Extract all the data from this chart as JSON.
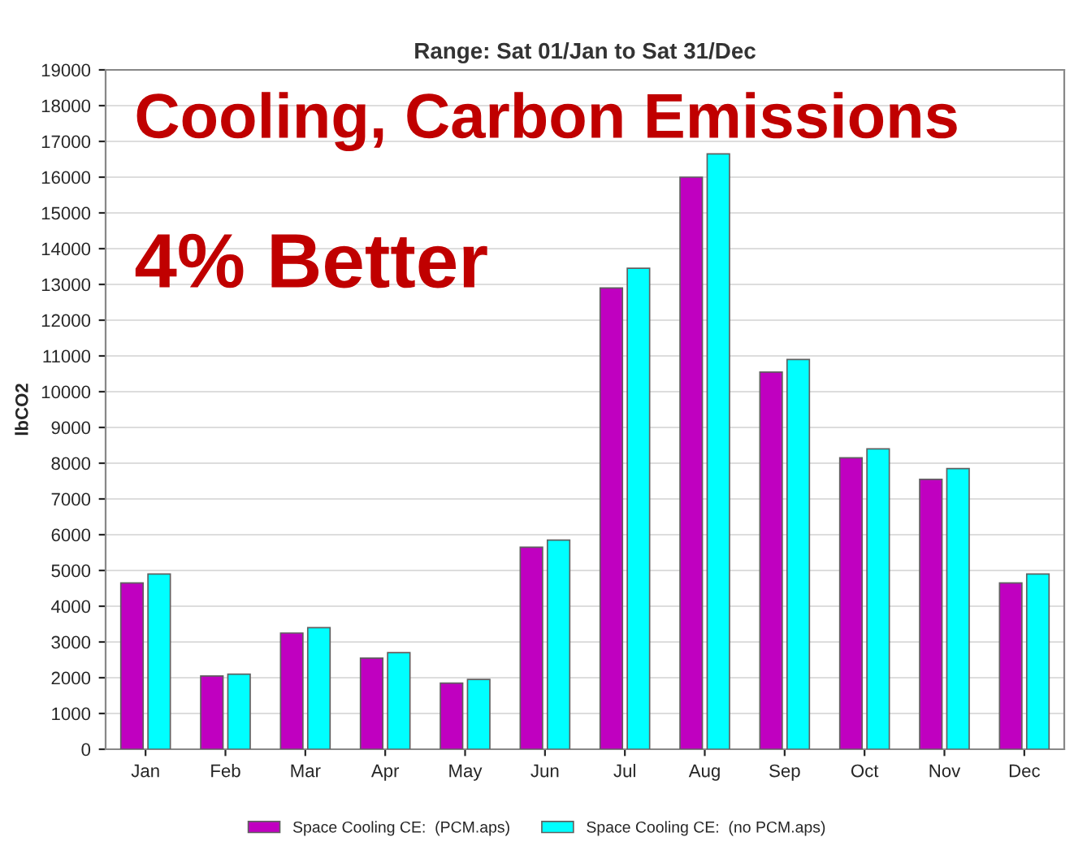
{
  "chart_data": {
    "type": "bar",
    "title": "Range: Sat 01/Jan to Sat 31/Dec",
    "ylabel": "lbCO2",
    "categories": [
      "Jan",
      "Feb",
      "Mar",
      "Apr",
      "May",
      "Jun",
      "Jul",
      "Aug",
      "Sep",
      "Oct",
      "Nov",
      "Dec"
    ],
    "series": [
      {
        "name": "Space Cooling CE:  (PCM.aps)",
        "color": "#c000c0",
        "values": [
          4650,
          2050,
          3250,
          2550,
          1850,
          5650,
          12900,
          16000,
          10550,
          8150,
          7550,
          4650
        ]
      },
      {
        "name": "Space Cooling CE:  (no PCM.aps)",
        "color": "#00ffff",
        "values": [
          4900,
          2100,
          3400,
          2700,
          1950,
          5850,
          13450,
          16650,
          10900,
          8400,
          7850,
          4900
        ]
      }
    ],
    "ylim": [
      0,
      19000
    ],
    "yticks": [
      0,
      1000,
      2000,
      3000,
      4000,
      5000,
      6000,
      7000,
      8000,
      9000,
      10000,
      11000,
      12000,
      13000,
      14000,
      15000,
      16000,
      17000,
      18000,
      19000
    ],
    "grid": "y",
    "legend": "bottom",
    "annotations": [
      "Cooling, Carbon Emissions",
      "4% Better"
    ]
  }
}
